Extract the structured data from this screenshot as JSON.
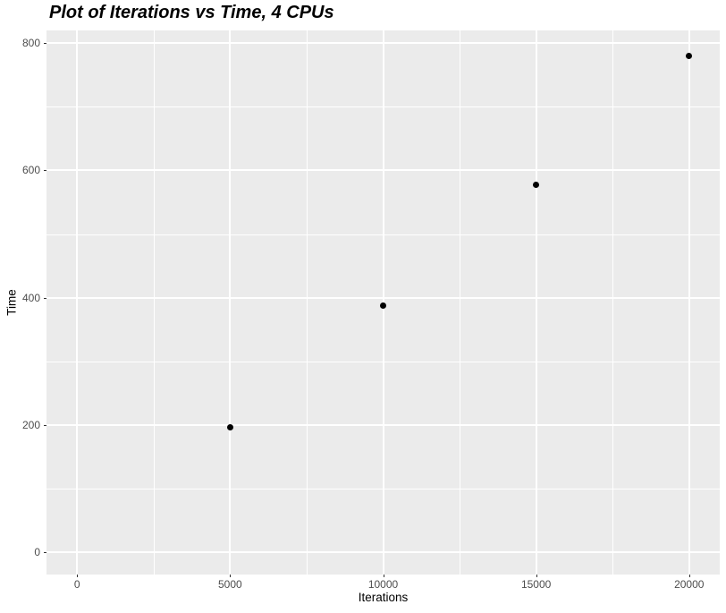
{
  "title": "Plot of Iterations vs Time, 4 CPUs",
  "chart_data": {
    "type": "scatter",
    "title": "Plot of Iterations vs Time, 4 CPUs",
    "xlabel": "Iterations",
    "ylabel": "Time",
    "points": [
      {
        "x": 5000,
        "y": 197
      },
      {
        "x": 10000,
        "y": 387
      },
      {
        "x": 15000,
        "y": 577
      },
      {
        "x": 20000,
        "y": 780
      }
    ],
    "x_ticks": [
      0,
      5000,
      10000,
      15000,
      20000
    ],
    "x_tick_labels": [
      "0",
      "5000",
      "10000",
      "15000",
      "20000"
    ],
    "y_ticks": [
      0,
      200,
      400,
      600,
      800
    ],
    "y_tick_labels": [
      "0",
      "200",
      "400",
      "600",
      "800"
    ],
    "x_minor_ticks": [
      2500,
      7500,
      12500,
      17500
    ],
    "y_minor_ticks": [
      100,
      300,
      500,
      700
    ],
    "xlim": [
      -1000,
      21000
    ],
    "ylim": [
      -35,
      820
    ],
    "grid": true,
    "legend": "none",
    "style": "ggplot2-theme-grey",
    "colors": {
      "panel_background": "#EBEBEB",
      "gridline_major": "#FFFFFF",
      "gridline_minor": "#FFFFFF",
      "point": "#000000",
      "tick_label": "#4D4D4D",
      "tick_mark": "#333333",
      "axis_title": "#000000",
      "title": "#000000"
    }
  }
}
